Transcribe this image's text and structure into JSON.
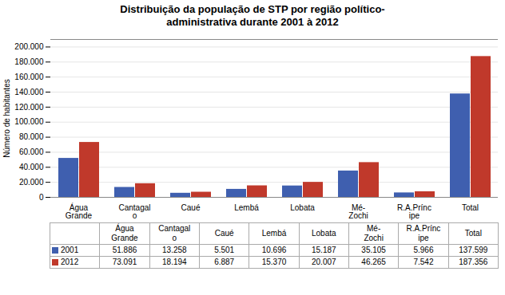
{
  "chart_data": {
    "type": "bar",
    "title": "Distribuição da população de STP por região político-\nadministrativa durante 2001 à 2012",
    "categories": [
      "Água\nGrande",
      "Cantagal\no",
      "Caué",
      "Lembá",
      "Lobata",
      "Mé-\nZochi",
      "R.A.Prínc\nipe",
      "Total"
    ],
    "series": [
      {
        "name": "2001",
        "color": "#3f5faf",
        "values": [
          51886,
          13258,
          5501,
          10696,
          15187,
          35105,
          5966,
          137599
        ],
        "value_labels": [
          "51.886",
          "13.258",
          "5.501",
          "10.696",
          "15.187",
          "35.105",
          "5.966",
          "137.599"
        ]
      },
      {
        "name": "2012",
        "color": "#c0392b",
        "values": [
          73091,
          18194,
          6887,
          15370,
          20007,
          46265,
          7542,
          187356
        ],
        "value_labels": [
          "73.091",
          "18.194",
          "6.887",
          "15.370",
          "20.007",
          "46.265",
          "7.542",
          "187.356"
        ]
      }
    ],
    "ylabel": "Número de habitantes",
    "ylim": [
      0,
      210000
    ],
    "yticks": [
      0,
      {
        "value": 20000,
        "label": "20.000"
      },
      {
        "value": 40000,
        "label": "40.000"
      },
      {
        "value": 60000,
        "label": "60.000"
      },
      {
        "value": 80000,
        "label": "80.000"
      },
      {
        "value": 100000,
        "label": "100.000"
      },
      {
        "value": 120000,
        "label": "120.000"
      },
      {
        "value": 140000,
        "label": "140.000"
      },
      {
        "value": 160000,
        "label": "160.000"
      },
      {
        "value": 180000,
        "label": "180.000"
      },
      {
        "value": 200000,
        "label": "200.000"
      }
    ],
    "grid": true
  }
}
